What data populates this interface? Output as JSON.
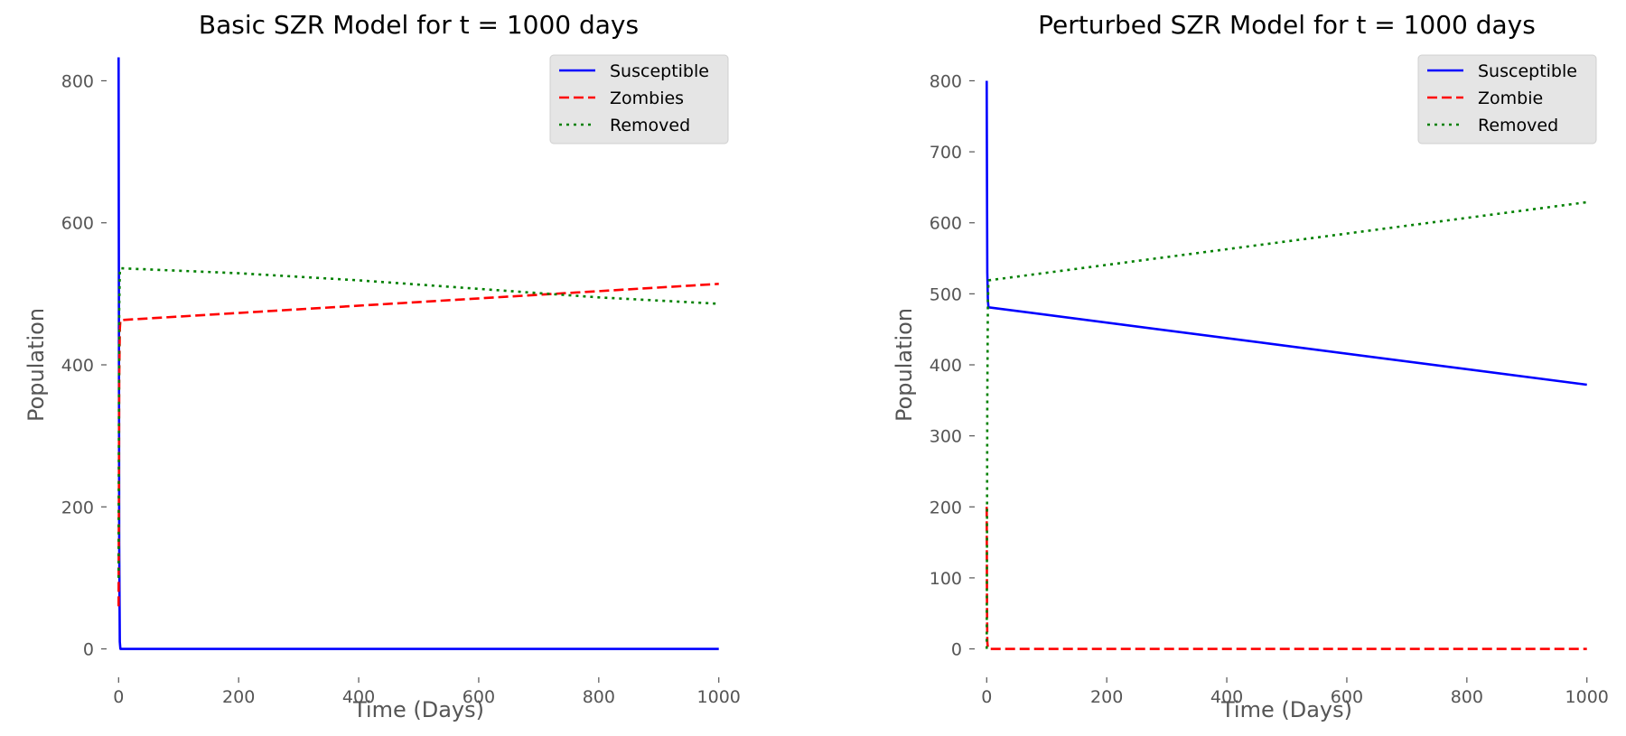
{
  "chart_data": [
    {
      "type": "line",
      "title": "Basic SZR Model for t = 1000 days",
      "xlabel": "Time (Days)",
      "ylabel": "Population",
      "xlim": [
        -20,
        1020
      ],
      "ylim": [
        -40,
        840
      ],
      "xticks": [
        0,
        200,
        400,
        600,
        800,
        1000
      ],
      "yticks": [
        0,
        200,
        400,
        600,
        800
      ],
      "grid": false,
      "legend_position": "top-right",
      "series": [
        {
          "name": "Susceptible",
          "color": "#0000ff",
          "dash": "solid",
          "x": [
            0,
            0.5,
            1,
            2,
            3,
            1000
          ],
          "y": [
            833,
            500,
            150,
            10,
            0,
            0
          ]
        },
        {
          "name": "Zombies",
          "color": "#ff0000",
          "dash": "dashed",
          "x": [
            0,
            0.5,
            1,
            2,
            3,
            1000
          ],
          "y": [
            60,
            200,
            380,
            450,
            463,
            514
          ]
        },
        {
          "name": "Removed",
          "color": "#008000",
          "dash": "dotted",
          "x": [
            0,
            0.5,
            1,
            2,
            3,
            200,
            400,
            600,
            800,
            1000
          ],
          "y": [
            100,
            300,
            480,
            530,
            536,
            529,
            519,
            507,
            495,
            486
          ]
        }
      ]
    },
    {
      "type": "line",
      "title": "Perturbed SZR Model for t = 1000 days",
      "xlabel": "Time (Days)",
      "ylabel": "Population",
      "xlim": [
        -20,
        1020
      ],
      "ylim": [
        -40,
        840
      ],
      "xticks": [
        0,
        200,
        400,
        600,
        800,
        1000
      ],
      "yticks": [
        0,
        100,
        200,
        300,
        400,
        500,
        600,
        700,
        800
      ],
      "grid": false,
      "legend_position": "top-right",
      "series": [
        {
          "name": "Susceptible",
          "color": "#0000ff",
          "dash": "solid",
          "x": [
            0,
            0.5,
            1,
            2,
            3,
            1000
          ],
          "y": [
            800,
            650,
            530,
            490,
            481,
            372
          ]
        },
        {
          "name": "Zombie",
          "color": "#ff0000",
          "dash": "dashed",
          "x": [
            0,
            0.5,
            1,
            2,
            3,
            1000
          ],
          "y": [
            200,
            60,
            10,
            1,
            0,
            0
          ]
        },
        {
          "name": "Removed",
          "color": "#008000",
          "dash": "dotted",
          "x": [
            0,
            0.5,
            1,
            2,
            3,
            1000
          ],
          "y": [
            0,
            150,
            350,
            490,
            519,
            629
          ]
        }
      ]
    }
  ]
}
